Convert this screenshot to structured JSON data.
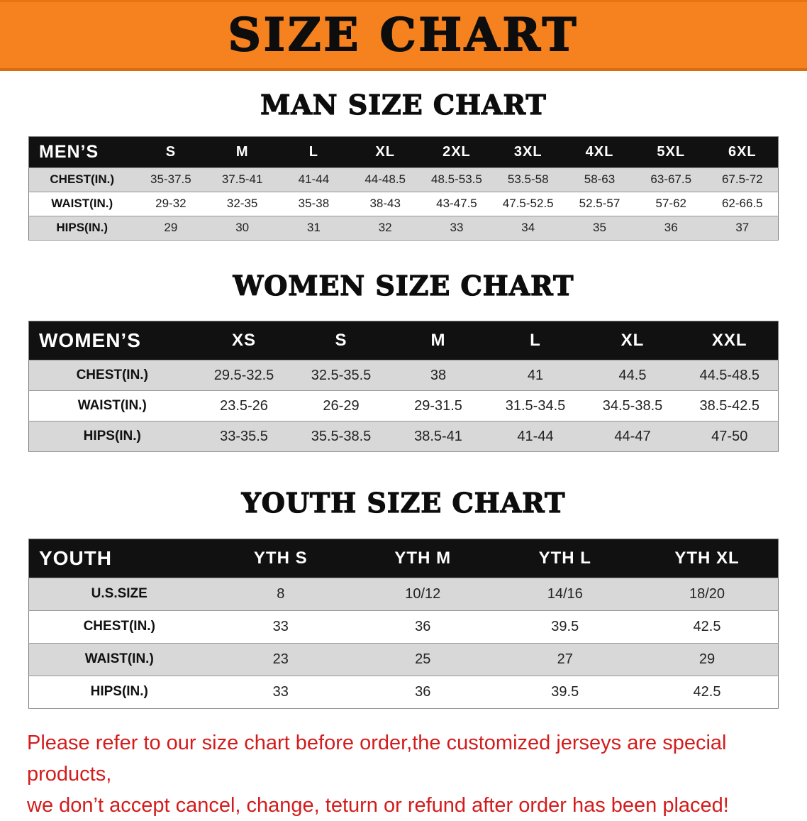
{
  "banner": {
    "title": "SIZE CHART"
  },
  "colors": {
    "banner_orange": "#f5821f",
    "table_header_black": "#111111",
    "row_stripe_gray": "#d8d8d8",
    "disclaimer_red": "#d41c1c"
  },
  "sections": [
    {
      "heading": "MAN SIZE CHART",
      "header_label": "MEN’S",
      "columns": [
        "S",
        "M",
        "L",
        "XL",
        "2XL",
        "3XL",
        "4XL",
        "5XL",
        "6XL"
      ],
      "rows": [
        {
          "label": "CHEST(IN.)",
          "values": [
            "35-37.5",
            "37.5-41",
            "41-44",
            "44-48.5",
            "48.5-53.5",
            "53.5-58",
            "58-63",
            "63-67.5",
            "67.5-72"
          ]
        },
        {
          "label": "WAIST(IN.)",
          "values": [
            "29-32",
            "32-35",
            "35-38",
            "38-43",
            "43-47.5",
            "47.5-52.5",
            "52.5-57",
            "57-62",
            "62-66.5"
          ]
        },
        {
          "label": "HIPS(IN.)",
          "values": [
            "29",
            "30",
            "31",
            "32",
            "33",
            "34",
            "35",
            "36",
            "37"
          ]
        }
      ]
    },
    {
      "heading": "WOMEN SIZE CHART",
      "header_label": "WOMEN’S",
      "columns": [
        "XS",
        "S",
        "M",
        "L",
        "XL",
        "XXL"
      ],
      "rows": [
        {
          "label": "CHEST(IN.)",
          "values": [
            "29.5-32.5",
            "32.5-35.5",
            "38",
            "41",
            "44.5",
            "44.5-48.5"
          ]
        },
        {
          "label": "WAIST(IN.)",
          "values": [
            "23.5-26",
            "26-29",
            "29-31.5",
            "31.5-34.5",
            "34.5-38.5",
            "38.5-42.5"
          ]
        },
        {
          "label": "HIPS(IN.)",
          "values": [
            "33-35.5",
            "35.5-38.5",
            "38.5-41",
            "41-44",
            "44-47",
            "47-50"
          ]
        }
      ]
    },
    {
      "heading": "YOUTH SIZE CHART",
      "header_label": "YOUTH",
      "columns": [
        "YTH S",
        "YTH M",
        "YTH L",
        "YTH XL"
      ],
      "rows": [
        {
          "label": "U.S.SIZE",
          "values": [
            "8",
            "10/12",
            "14/16",
            "18/20"
          ]
        },
        {
          "label": "CHEST(IN.)",
          "values": [
            "33",
            "36",
            "39.5",
            "42.5"
          ]
        },
        {
          "label": "WAIST(IN.)",
          "values": [
            "23",
            "25",
            "27",
            "29"
          ]
        },
        {
          "label": "HIPS(IN.)",
          "values": [
            "33",
            "36",
            "39.5",
            "42.5"
          ]
        }
      ]
    }
  ],
  "disclaimer": {
    "line1": "Please refer to our size chart before order,the customized jerseys are special products,",
    "line2": "we don’t accept cancel, change, teturn or refund after order has been placed!"
  }
}
